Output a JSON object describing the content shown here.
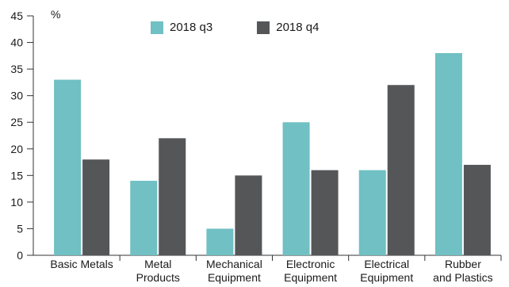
{
  "chart_data": {
    "type": "bar",
    "title": "",
    "ylabel": "%",
    "xlabel": "",
    "ylim": [
      0,
      45
    ],
    "yticks": [
      0,
      5,
      10,
      15,
      20,
      25,
      30,
      35,
      40,
      45
    ],
    "grid": false,
    "legend_position": "top",
    "categories": [
      [
        "Basic Metals"
      ],
      [
        "Metal",
        "Products"
      ],
      [
        "Mechanical",
        "Equipment"
      ],
      [
        "Electronic",
        "Equipment"
      ],
      [
        "Electrical",
        "Equipment"
      ],
      [
        "Rubber",
        "and Plastics"
      ]
    ],
    "series": [
      {
        "name": "2018 q3",
        "color": "#70c0c4",
        "values": [
          33,
          14,
          5,
          25,
          16,
          38
        ]
      },
      {
        "name": "2018 q4",
        "color": "#555658",
        "values": [
          18,
          22,
          15,
          16,
          32,
          17
        ]
      }
    ]
  }
}
